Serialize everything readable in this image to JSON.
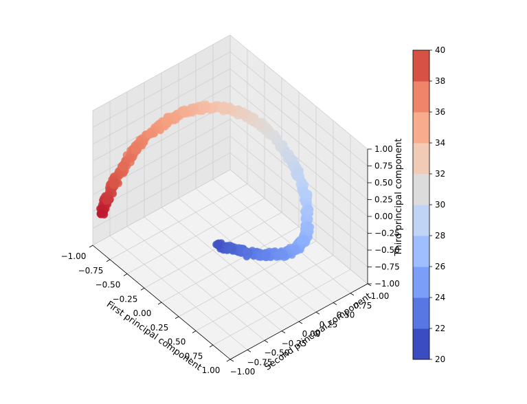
{
  "chart_data": {
    "type": "scatter",
    "projection": "3d",
    "title": "",
    "xlabel": "First principal component",
    "ylabel": "Second principal component",
    "zlabel": "Third principal component",
    "xlim": [
      -1.0,
      1.0
    ],
    "ylim": [
      -1.0,
      1.0
    ],
    "zlim": [
      -1.0,
      1.0
    ],
    "xticks": [
      "−1.00",
      "−0.75",
      "−0.50",
      "−0.25",
      "0.00",
      "0.25",
      "0.50",
      "0.75",
      "1.00"
    ],
    "yticks": [
      "−1.00",
      "−0.75",
      "−0.50",
      "−0.25",
      "0.00",
      "0.25",
      "0.50",
      "0.75",
      "1.00"
    ],
    "zticks": [
      "−1.00",
      "−0.75",
      "−0.50",
      "−0.25",
      "0.00",
      "0.25",
      "0.50",
      "0.75",
      "1.00"
    ],
    "grid": true,
    "colormap": "coolwarm",
    "series": [
      {
        "points": [
          {
            "x": -0.22,
            "y": 0.05,
            "z": -0.93,
            "c": 20.3
          },
          {
            "x": -0.12,
            "y": 0.15,
            "z": -0.96,
            "c": 21.0
          },
          {
            "x": 0.02,
            "y": 0.25,
            "z": -0.95,
            "c": 21.8
          },
          {
            "x": 0.18,
            "y": 0.35,
            "z": -0.9,
            "c": 22.6
          },
          {
            "x": 0.33,
            "y": 0.45,
            "z": -0.82,
            "c": 23.4
          },
          {
            "x": 0.43,
            "y": 0.53,
            "z": -0.7,
            "c": 24.2
          },
          {
            "x": 0.48,
            "y": 0.6,
            "z": -0.55,
            "c": 25.0
          },
          {
            "x": 0.48,
            "y": 0.65,
            "z": -0.38,
            "c": 25.8
          },
          {
            "x": 0.43,
            "y": 0.7,
            "z": -0.2,
            "c": 26.6
          },
          {
            "x": 0.35,
            "y": 0.73,
            "z": -0.02,
            "c": 27.4
          },
          {
            "x": 0.22,
            "y": 0.75,
            "z": 0.16,
            "c": 28.2
          },
          {
            "x": 0.08,
            "y": 0.74,
            "z": 0.32,
            "c": 29.0
          },
          {
            "x": -0.07,
            "y": 0.7,
            "z": 0.46,
            "c": 29.8
          },
          {
            "x": -0.22,
            "y": 0.63,
            "z": 0.57,
            "c": 30.6
          },
          {
            "x": -0.38,
            "y": 0.53,
            "z": 0.64,
            "c": 31.4
          },
          {
            "x": -0.52,
            "y": 0.4,
            "z": 0.67,
            "c": 32.2
          },
          {
            "x": -0.64,
            "y": 0.24,
            "z": 0.66,
            "c": 33.0
          },
          {
            "x": -0.74,
            "y": 0.06,
            "z": 0.6,
            "c": 33.8
          },
          {
            "x": -0.82,
            "y": -0.12,
            "z": 0.5,
            "c": 34.6
          },
          {
            "x": -0.88,
            "y": -0.3,
            "z": 0.36,
            "c": 35.4
          },
          {
            "x": -0.92,
            "y": -0.47,
            "z": 0.19,
            "c": 36.2
          },
          {
            "x": -0.94,
            "y": -0.62,
            "z": 0.0,
            "c": 37.0
          },
          {
            "x": -0.95,
            "y": -0.75,
            "z": -0.2,
            "c": 37.8
          },
          {
            "x": -0.95,
            "y": -0.85,
            "z": -0.38,
            "c": 38.6
          },
          {
            "x": -0.95,
            "y": -0.93,
            "z": -0.52,
            "c": 39.4
          }
        ]
      }
    ],
    "colorbar": {
      "ticks": [
        "20",
        "22",
        "24",
        "26",
        "28",
        "30",
        "32",
        "34",
        "36",
        "38",
        "40"
      ],
      "levels": [
        20,
        22,
        24,
        26,
        28,
        30,
        32,
        34,
        36,
        38,
        40
      ],
      "colors": [
        "#3b4cc0",
        "#5977e3",
        "#7b9ff9",
        "#9ebeff",
        "#c0d4f5",
        "#dddcdc",
        "#f2cbb7",
        "#f7ac8e",
        "#ee8468",
        "#d65244",
        "#b40426"
      ]
    }
  }
}
